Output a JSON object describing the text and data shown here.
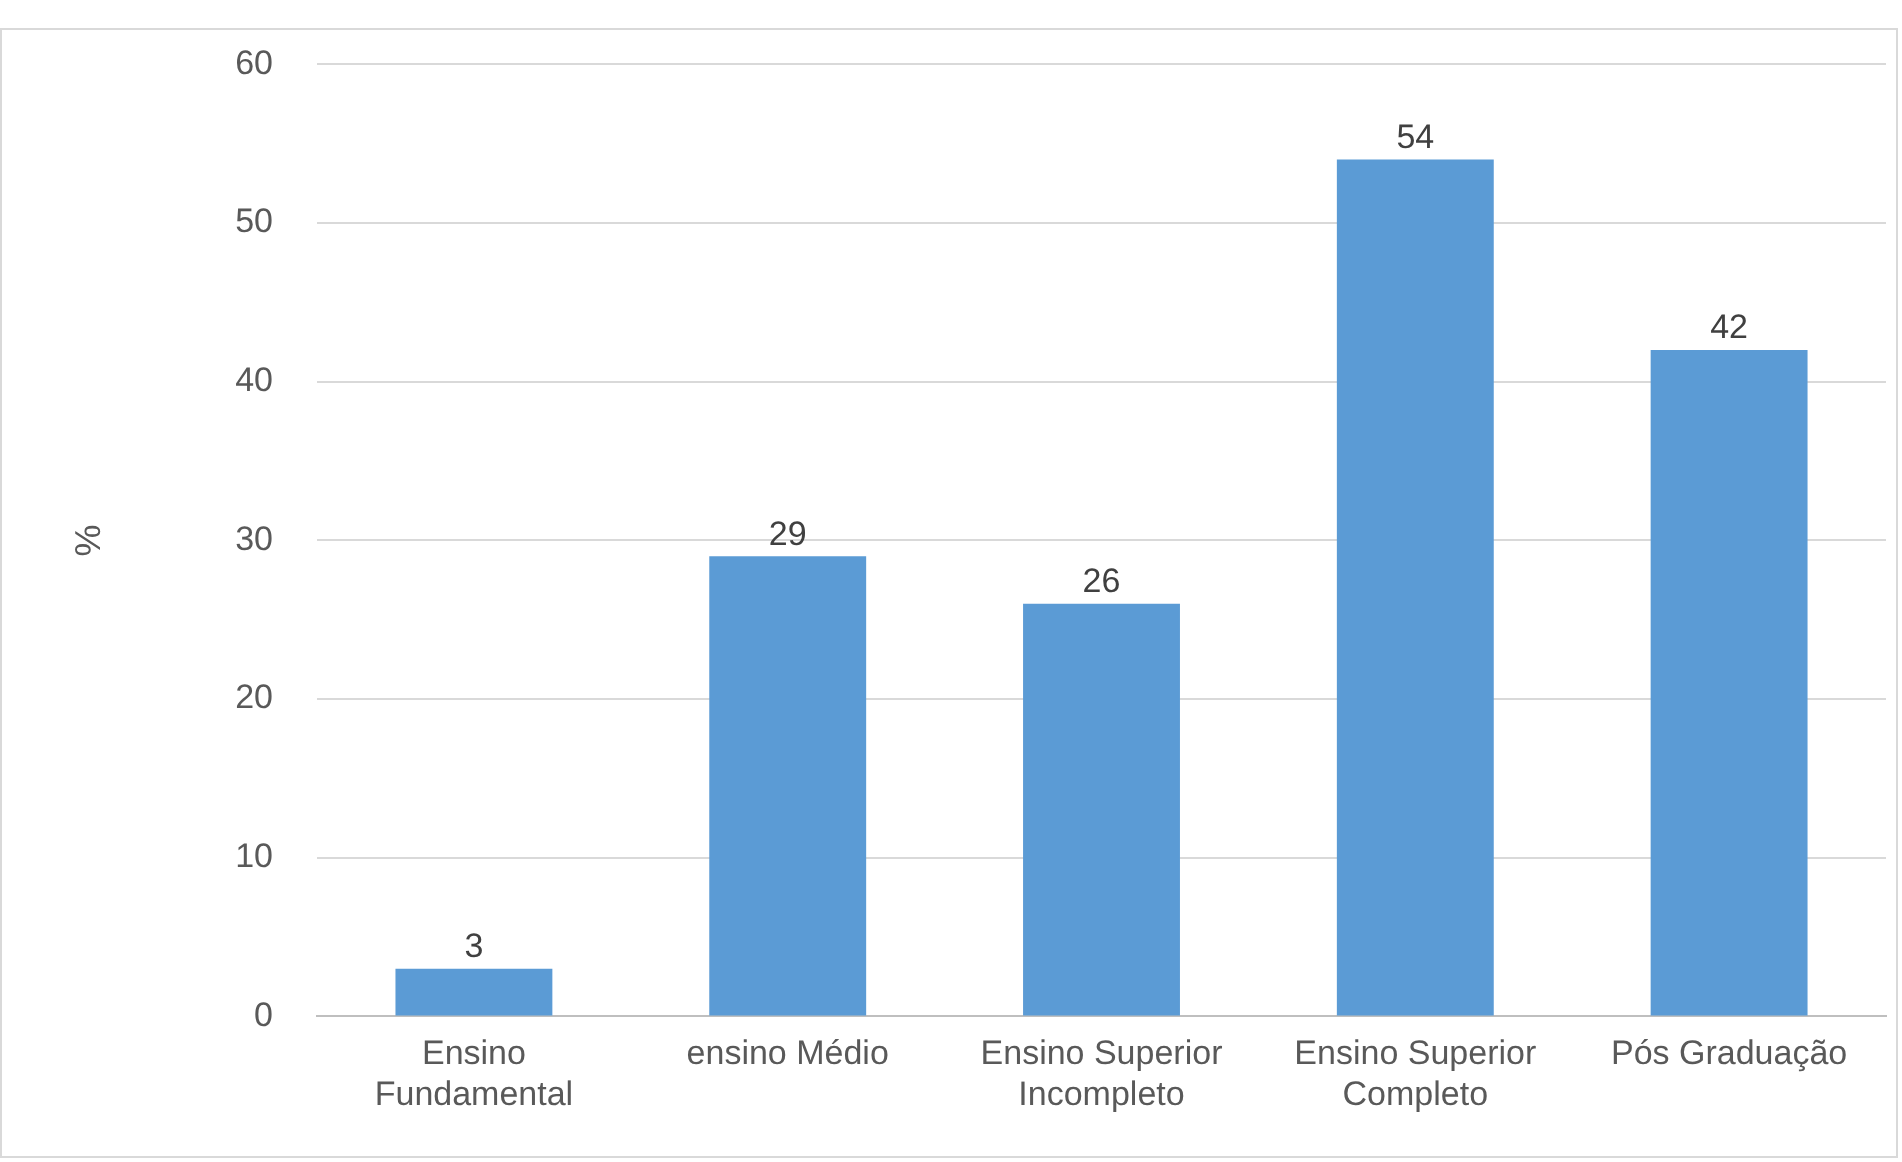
{
  "chart_data": {
    "type": "bar",
    "ylabel": "%",
    "categories": [
      "Ensino Fundamental",
      "ensino Médio",
      "Ensino Superior Incompleto",
      "Ensino Superior Completo",
      "Pós Graduação"
    ],
    "values": [
      3,
      29,
      26,
      54,
      42
    ],
    "color": "#5b9bd5",
    "ylim": [
      0,
      60
    ],
    "yticks": [
      0,
      10,
      20,
      30,
      40,
      50,
      60
    ],
    "grid": "y",
    "data_labels": true,
    "legend": false
  }
}
